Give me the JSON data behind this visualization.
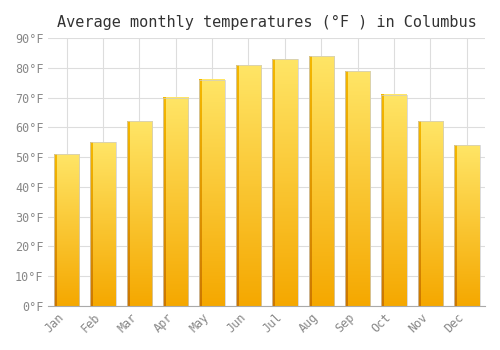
{
  "title": "Average monthly temperatures (°F ) in Columbus",
  "months": [
    "Jan",
    "Feb",
    "Mar",
    "Apr",
    "May",
    "Jun",
    "Jul",
    "Aug",
    "Sep",
    "Oct",
    "Nov",
    "Dec"
  ],
  "values": [
    51,
    55,
    62,
    70,
    76,
    81,
    83,
    84,
    79,
    71,
    62,
    54
  ],
  "bar_color_bottom": "#F5A800",
  "bar_color_top": "#FFE066",
  "bar_color_left_edge": "#E08000",
  "ylim": [
    0,
    90
  ],
  "yticks": [
    0,
    10,
    20,
    30,
    40,
    50,
    60,
    70,
    80,
    90
  ],
  "ytick_labels": [
    "0°F",
    "10°F",
    "20°F",
    "30°F",
    "40°F",
    "50°F",
    "60°F",
    "70°F",
    "80°F",
    "90°F"
  ],
  "grid_color": "#dddddd",
  "background_color": "#ffffff",
  "title_fontsize": 11,
  "tick_fontsize": 8.5,
  "font_family": "monospace",
  "bar_width": 0.7
}
